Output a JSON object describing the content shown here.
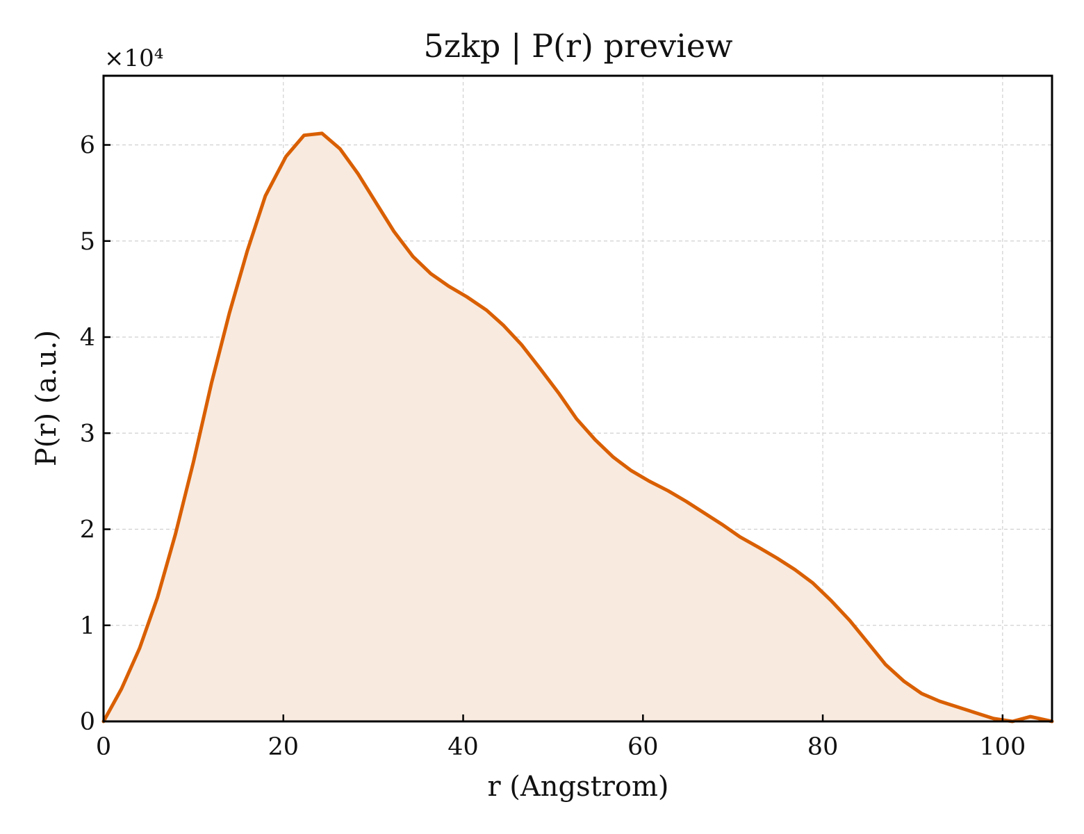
{
  "chart_data": {
    "type": "area",
    "title": "5zkp | P(r) preview",
    "xlabel": "r (Angstrom)",
    "ylabel": "P(r) (a.u.)",
    "y_offset_label": "×10⁴",
    "y_scale_factor": 10000,
    "xlim": [
      0,
      105.5
    ],
    "ylim": [
      0,
      67200
    ],
    "grid": true,
    "x_ticks": [
      0,
      20,
      40,
      60,
      80,
      100
    ],
    "x_tick_labels": [
      "0",
      "20",
      "40",
      "60",
      "80",
      "100"
    ],
    "y_ticks": [
      0,
      10000,
      20000,
      30000,
      40000,
      50000,
      60000
    ],
    "y_tick_labels": [
      "0",
      "1",
      "2",
      "3",
      "4",
      "5",
      "6"
    ],
    "colors": {
      "line": "#d95f02",
      "fill": "#f8eadf",
      "grid": "#d0d0d0",
      "axes": "#000000"
    },
    "series": [
      {
        "x": [
          0,
          2,
          4,
          6,
          8,
          10,
          12,
          14,
          16,
          18,
          20.3,
          22.3,
          24.3,
          26.3,
          28.3,
          30.3,
          32.3,
          34.4,
          36.4,
          38.4,
          40.4,
          42.6,
          44.5,
          46.5,
          48.5,
          50.6,
          52.6,
          54.7,
          56.7,
          58.7,
          60.7,
          62.8,
          64.8,
          66.8,
          68.8,
          70.8,
          72.9,
          74.9,
          76.9,
          78.9,
          80.9,
          83,
          85,
          87,
          89,
          91,
          93,
          95,
          97,
          99,
          101.1,
          103.1,
          105.5
        ],
        "y": [
          0,
          3400,
          7600,
          12900,
          19500,
          27000,
          35200,
          42500,
          49000,
          54700,
          58800,
          61000,
          61200,
          59600,
          57000,
          54000,
          51000,
          48400,
          46600,
          45300,
          44200,
          42800,
          41200,
          39200,
          36800,
          34200,
          31500,
          29300,
          27500,
          26100,
          25000,
          24000,
          22900,
          21700,
          20500,
          19200,
          18100,
          17000,
          15800,
          14400,
          12600,
          10500,
          8200,
          5900,
          4200,
          2900,
          2100,
          1500,
          900,
          300,
          0,
          500,
          0
        ]
      }
    ]
  }
}
